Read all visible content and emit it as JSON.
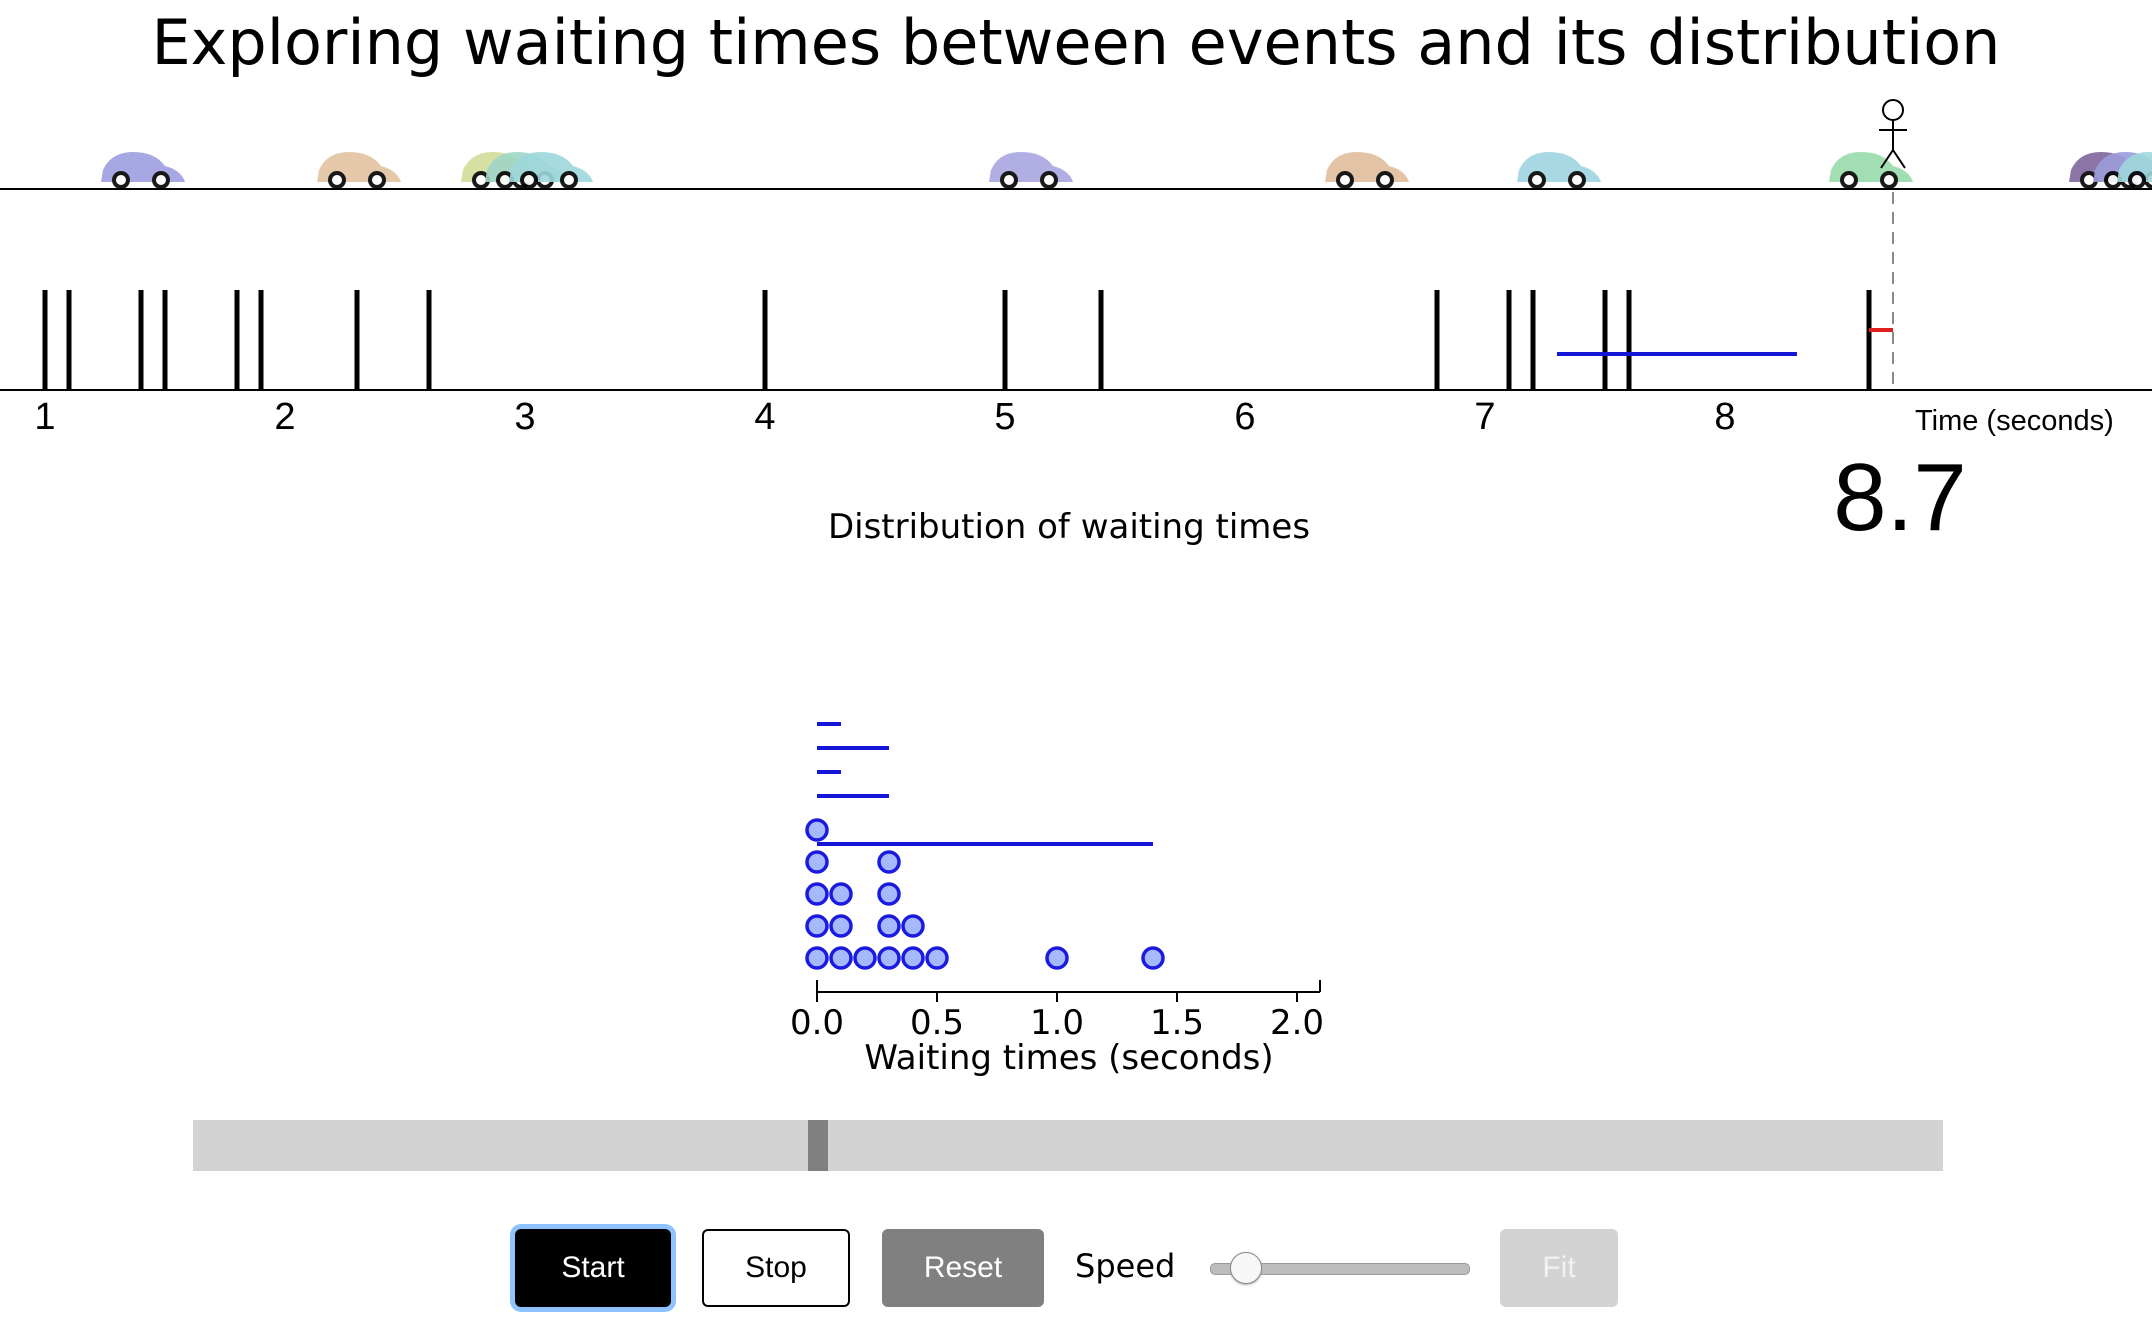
{
  "title": "Exploring waiting times between events and its distribution",
  "current_time": "8.7",
  "timeline": {
    "axis_label": "Time (seconds)",
    "ticks": [
      "1",
      "2",
      "3",
      "4",
      "5",
      "6",
      "7",
      "8"
    ],
    "range": [
      0.8,
      9.8
    ],
    "observer_time": 8.7,
    "event_times": [
      1.0,
      1.1,
      1.4,
      1.5,
      1.8,
      1.9,
      2.3,
      2.6,
      4.0,
      5.0,
      5.4,
      6.8,
      7.1,
      7.2,
      7.5,
      7.6,
      8.6
    ],
    "cars": [
      {
        "time": 1.4,
        "color": "#9d9ee0"
      },
      {
        "time": 2.3,
        "color": "#e3c3a0"
      },
      {
        "time": 2.9,
        "color": "#d4dc9a"
      },
      {
        "time": 3.0,
        "color": "#a0d6c7"
      },
      {
        "time": 3.1,
        "color": "#9fd8dc"
      },
      {
        "time": 5.1,
        "color": "#a9a6e2"
      },
      {
        "time": 6.5,
        "color": "#e1bd9c"
      },
      {
        "time": 7.3,
        "color": "#9fd4e0"
      },
      {
        "time": 8.6,
        "color": "#97dcaa"
      },
      {
        "time": 9.6,
        "color": "#7f679e"
      },
      {
        "time": 9.7,
        "color": "#9c9ddc"
      },
      {
        "time": 9.8,
        "color": "#9fd8dc"
      }
    ],
    "wait_bar": {
      "start": 7.3,
      "end": 8.3
    },
    "red_bar": {
      "start": 8.6,
      "end": 8.7
    }
  },
  "histogram": {
    "title": "Distribution of waiting times",
    "xlabel": "Waiting times (seconds)"
  },
  "chart_data": {
    "type": "scatter",
    "title": "Distribution of waiting times",
    "xlabel": "Waiting times (seconds)",
    "xlim": [
      0.0,
      2.1
    ],
    "xticks": [
      "0.0",
      "0.5",
      "1.0",
      "1.5",
      "2.0"
    ],
    "dots": [
      {
        "x": 0.0,
        "count": 5
      },
      {
        "x": 0.1,
        "count": 3
      },
      {
        "x": 0.2,
        "count": 1
      },
      {
        "x": 0.3,
        "count": 4
      },
      {
        "x": 0.4,
        "count": 2
      },
      {
        "x": 0.5,
        "count": 1
      },
      {
        "x": 1.0,
        "count": 1
      },
      {
        "x": 1.4,
        "count": 1
      }
    ],
    "segments": [
      {
        "start": 0.0,
        "end": 0.1,
        "level": 6
      },
      {
        "start": 0.0,
        "end": 0.3,
        "level": 5
      },
      {
        "start": 0.0,
        "end": 0.1,
        "level": 4
      },
      {
        "start": 0.0,
        "end": 0.3,
        "level": 3
      },
      {
        "start": 0.0,
        "end": 1.4,
        "level": 1
      }
    ]
  },
  "scrubber": {
    "value": 0.357
  },
  "controls": {
    "start": "Start",
    "stop": "Stop",
    "reset": "Reset",
    "speed": "Speed",
    "fit": "Fit",
    "speed_value": 0.13
  }
}
